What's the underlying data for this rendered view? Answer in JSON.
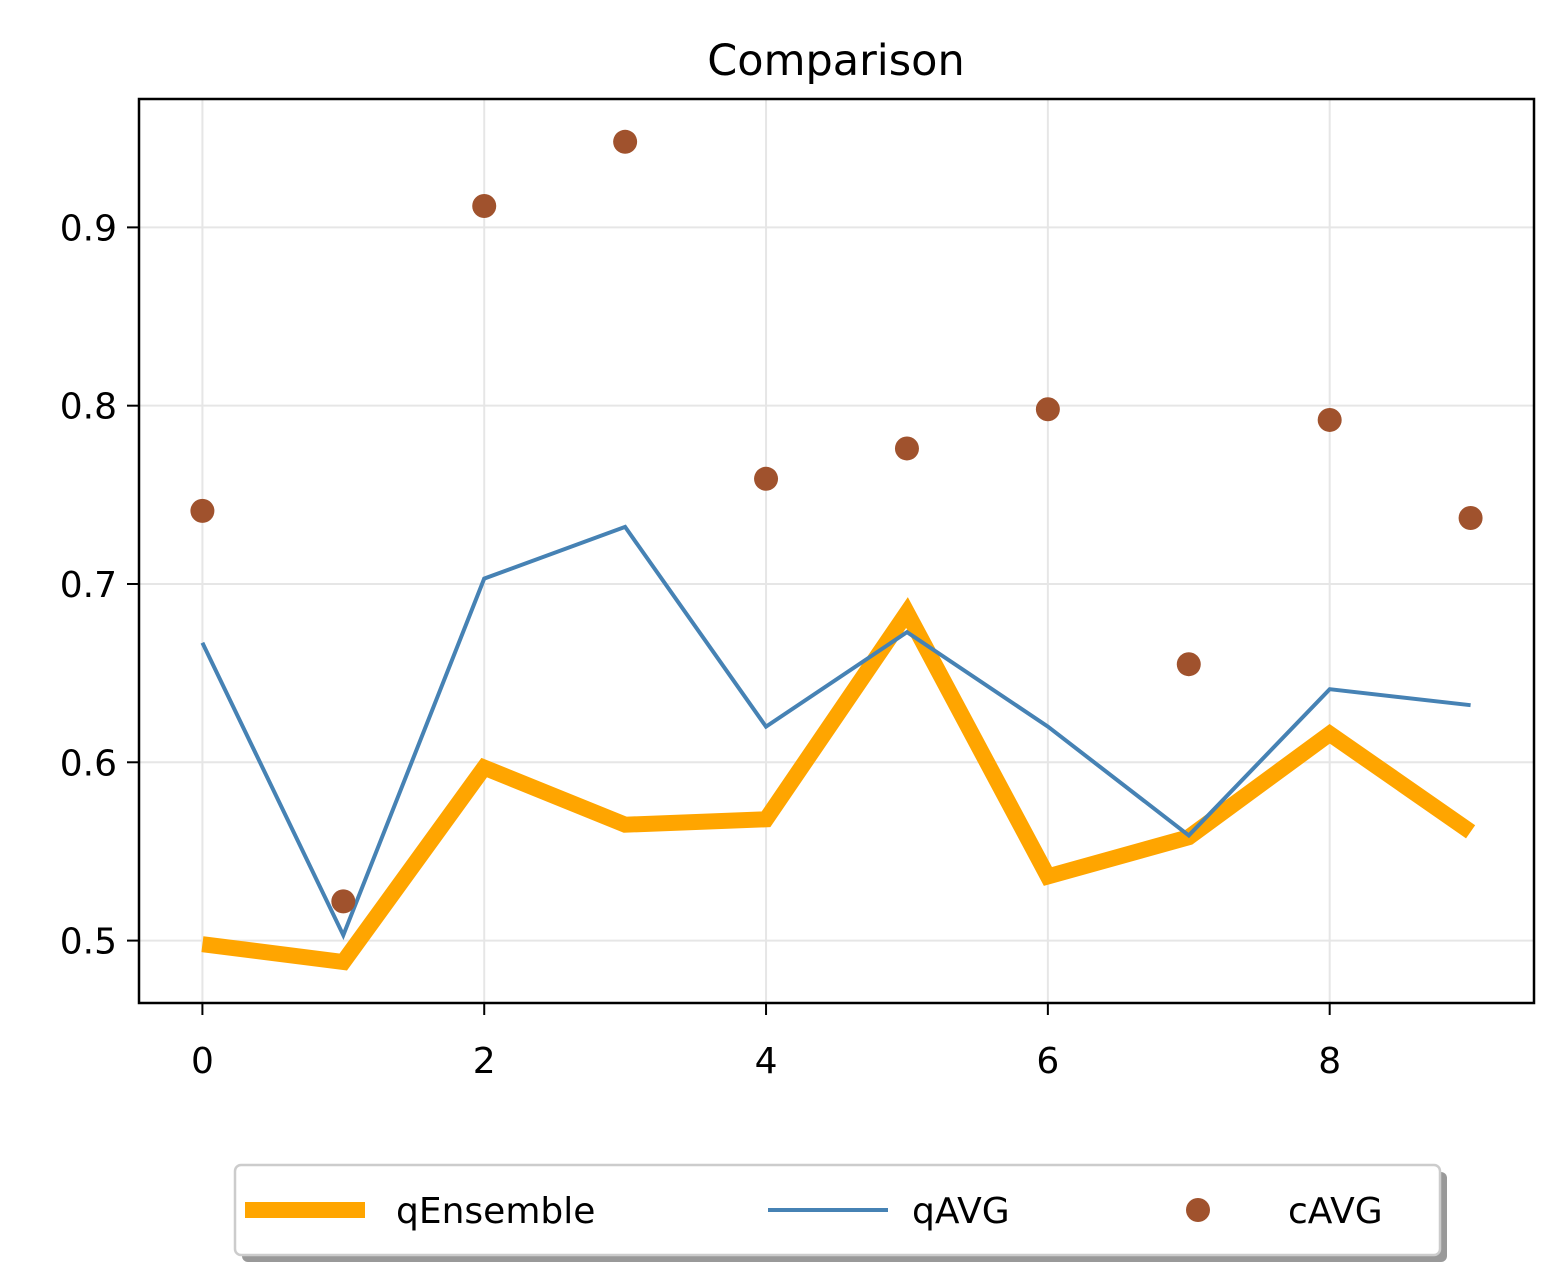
{
  "chart_data": {
    "type": "line",
    "title": "Comparison",
    "xlabel": "",
    "ylabel": "",
    "x": [
      0,
      1,
      2,
      3,
      4,
      5,
      6,
      7,
      8,
      9
    ],
    "xticks": [
      0,
      2,
      4,
      6,
      8
    ],
    "yticks": [
      0.5,
      0.6,
      0.7,
      0.8,
      0.9
    ],
    "xlim": [
      -0.45,
      9.45
    ],
    "ylim": [
      0.465,
      0.972
    ],
    "grid": true,
    "legend_position": "bottom-center",
    "series": [
      {
        "name": "qEnsemble",
        "style": "thick-line",
        "color": "#FFA500",
        "values": [
          0.498,
          0.488,
          0.597,
          0.565,
          0.568,
          0.684,
          0.536,
          0.558,
          0.616,
          0.561
        ]
      },
      {
        "name": "qAVG",
        "style": "line",
        "color": "#4682B4",
        "values": [
          0.667,
          0.503,
          0.703,
          0.732,
          0.62,
          0.673,
          0.62,
          0.559,
          0.641,
          0.632
        ]
      },
      {
        "name": "cAVG",
        "style": "scatter",
        "color": "#A0522D",
        "values": [
          0.741,
          0.522,
          0.912,
          0.948,
          0.759,
          0.776,
          0.798,
          0.655,
          0.792,
          0.737
        ]
      }
    ]
  }
}
